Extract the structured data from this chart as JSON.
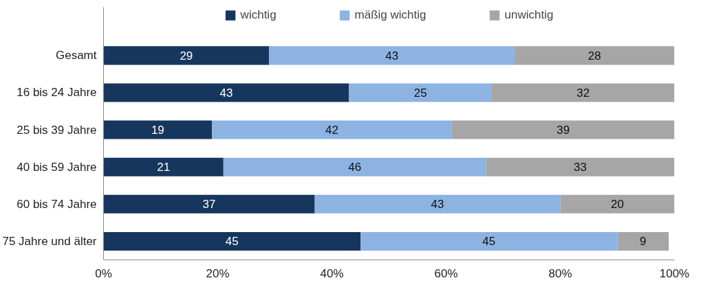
{
  "chart_data": {
    "type": "bar",
    "orientation": "horizontal",
    "stacked": true,
    "data_labels": true,
    "legend": "top",
    "grid": false,
    "categories": [
      "Gesamt",
      "16 bis 24 Jahre",
      "25 bis 39 Jahre",
      "40 bis 59 Jahre",
      "60 bis 74 Jahre",
      "75 Jahre und älter"
    ],
    "series": [
      {
        "name": "wichtig",
        "color": "#17365d",
        "values": [
          29,
          43,
          19,
          21,
          37,
          45
        ]
      },
      {
        "name": "mäßig wichtig",
        "color": "#8db3e2",
        "values": [
          43,
          25,
          42,
          46,
          43,
          45
        ]
      },
      {
        "name": "unwichtig",
        "color": "#a6a6a6",
        "values": [
          28,
          32,
          39,
          33,
          20,
          9
        ]
      }
    ],
    "xlim": [
      0,
      100
    ],
    "xticks": [
      {
        "value": 0,
        "label": "0%"
      },
      {
        "value": 20,
        "label": "20%"
      },
      {
        "value": 40,
        "label": "40%"
      },
      {
        "value": 60,
        "label": "60%"
      },
      {
        "value": 80,
        "label": "80%"
      },
      {
        "value": 100,
        "label": "100%"
      }
    ]
  }
}
